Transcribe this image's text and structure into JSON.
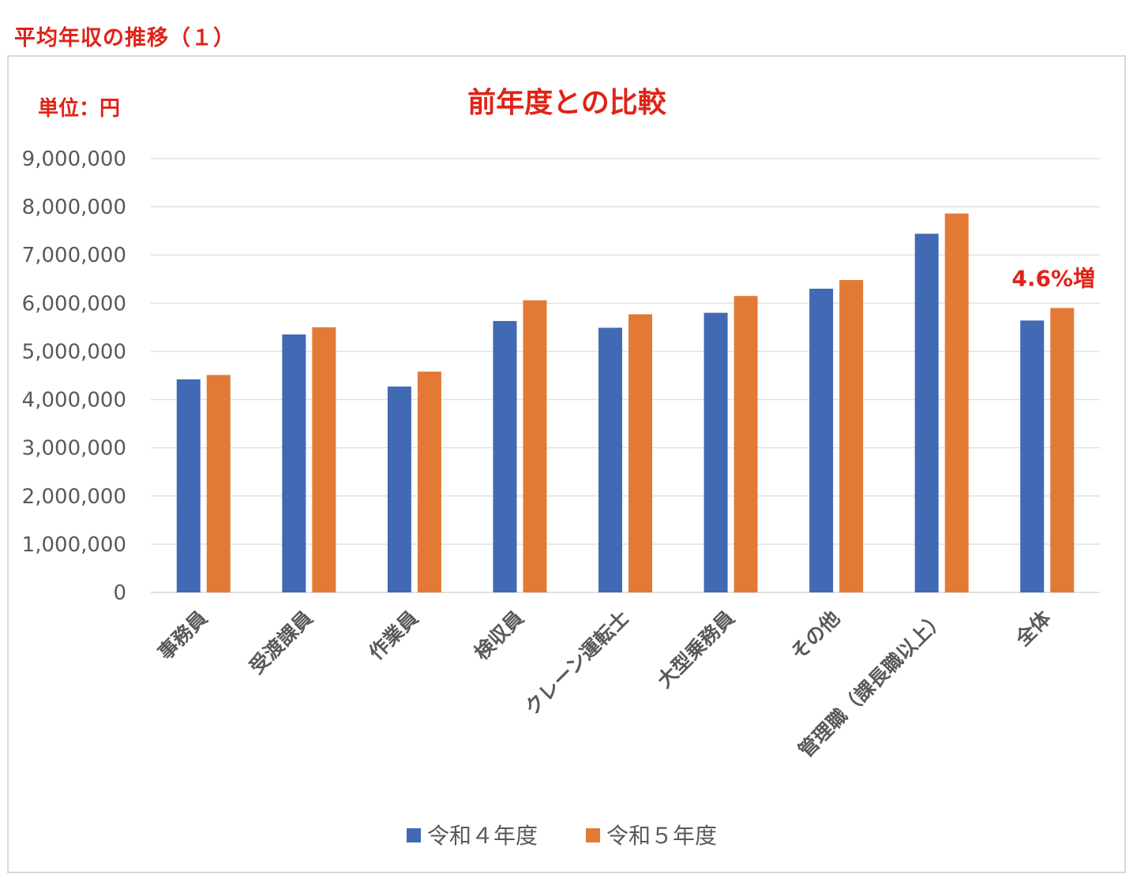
{
  "page_heading": "平均年収の推移（１）",
  "colors": {
    "accent_red": "#e02318",
    "series_1": "#4169b4",
    "series_2": "#e27a36",
    "grid": "#e1e1e1",
    "text": "#595959"
  },
  "chart_data": {
    "type": "bar",
    "title": "前年度との比較",
    "unit_label": "単位：円",
    "xlabel": "",
    "ylabel": "",
    "ylim": [
      0,
      9000000
    ],
    "yticks": [
      0,
      1000000,
      2000000,
      3000000,
      4000000,
      5000000,
      6000000,
      7000000,
      8000000,
      9000000
    ],
    "ytick_labels": [
      "0",
      "1,000,000",
      "2,000,000",
      "3,000,000",
      "4,000,000",
      "5,000,000",
      "6,000,000",
      "7,000,000",
      "8,000,000",
      "9,000,000"
    ],
    "grid": true,
    "legend_position": "bottom",
    "categories": [
      "事務員",
      "受渡課員",
      "作業員",
      "検収員",
      "クレーン運転士",
      "大型乗務員",
      "その他",
      "管理職（課長職以上）",
      "全体"
    ],
    "series": [
      {
        "name": "令和４年度",
        "color": "#4169b4",
        "values": [
          4420000,
          5350000,
          4270000,
          5630000,
          5490000,
          5800000,
          6300000,
          7440000,
          5640000
        ]
      },
      {
        "name": "令和５年度",
        "color": "#e27a36",
        "values": [
          4510000,
          5500000,
          4580000,
          6060000,
          5770000,
          6150000,
          6480000,
          7860000,
          5900000
        ]
      }
    ],
    "annotations": [
      {
        "text": "4.6%増",
        "category": "全体"
      }
    ]
  }
}
